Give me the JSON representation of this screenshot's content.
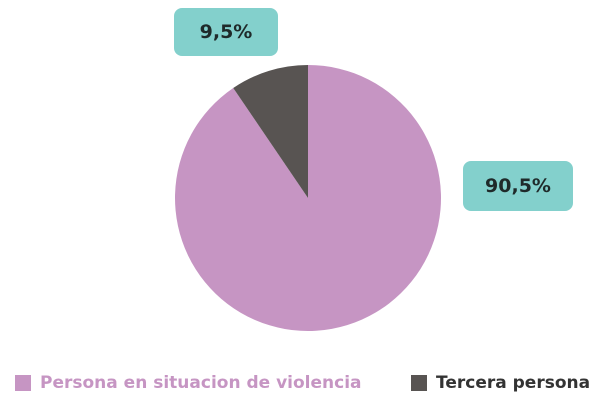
{
  "chart_data": {
    "type": "pie",
    "slices": [
      {
        "label": "Persona en situacion de violencia",
        "value": 90.5,
        "display": "90,5%",
        "color": "#c695c3"
      },
      {
        "label": "Tercera persona",
        "value": 9.5,
        "display": "9,5%",
        "color": "#585452"
      }
    ],
    "legend_position": "bottom",
    "label_box_color": "#83d0cc"
  }
}
